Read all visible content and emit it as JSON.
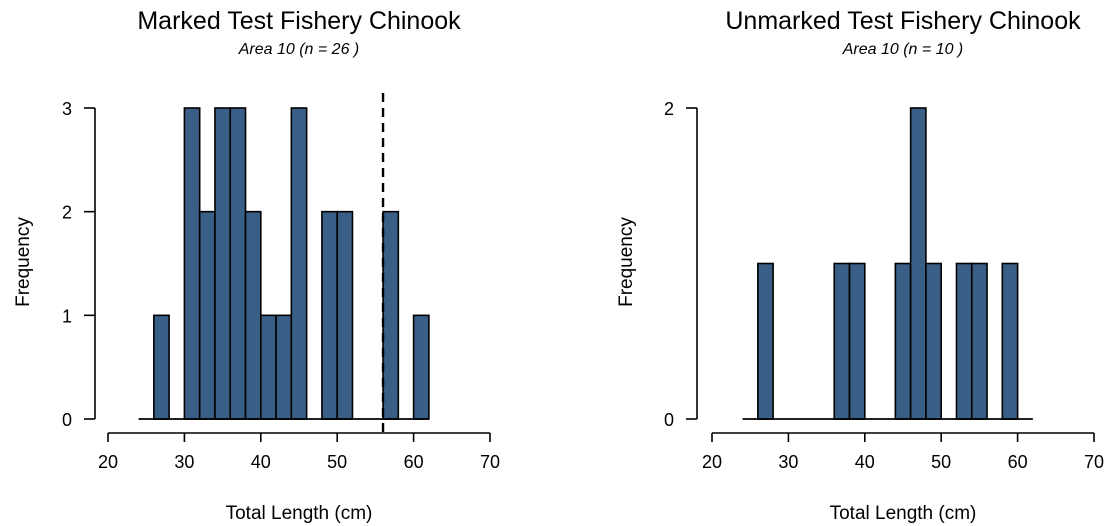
{
  "colors": {
    "bar_fill": "#3A5F87",
    "bar_stroke": "#000000",
    "axis": "#000000"
  },
  "chart_data": [
    {
      "type": "bar",
      "title": "Marked Test Fishery Chinook",
      "subtitle": "Area 10  (n = 26 )",
      "xlabel": "Total Length (cm)",
      "ylabel": "Frequency",
      "xlim": [
        20,
        70
      ],
      "xticks": [
        20,
        30,
        40,
        50,
        60,
        70
      ],
      "ylim": [
        0,
        3
      ],
      "yticks": [
        0,
        1,
        2,
        3
      ],
      "baseline_range": [
        24,
        62
      ],
      "bin_width": 2,
      "bins": [
        {
          "start": 26,
          "count": 1
        },
        {
          "start": 30,
          "count": 3
        },
        {
          "start": 32,
          "count": 2
        },
        {
          "start": 34,
          "count": 3
        },
        {
          "start": 36,
          "count": 3
        },
        {
          "start": 38,
          "count": 2
        },
        {
          "start": 40,
          "count": 1
        },
        {
          "start": 42,
          "count": 1
        },
        {
          "start": 44,
          "count": 3
        },
        {
          "start": 48,
          "count": 2
        },
        {
          "start": 50,
          "count": 2
        },
        {
          "start": 56,
          "count": 2
        },
        {
          "start": 60,
          "count": 1
        }
      ],
      "reference_line": {
        "x": 56,
        "style": "dashed"
      }
    },
    {
      "type": "bar",
      "title": "Unmarked Test Fishery Chinook",
      "subtitle": "Area 10  (n = 10 )",
      "xlabel": "Total Length (cm)",
      "ylabel": "Frequency",
      "xlim": [
        20,
        70
      ],
      "xticks": [
        20,
        30,
        40,
        50,
        60,
        70
      ],
      "ylim": [
        0,
        2
      ],
      "yticks": [
        0,
        2
      ],
      "baseline_range": [
        24,
        62
      ],
      "bin_width": 2,
      "bins": [
        {
          "start": 26,
          "count": 1
        },
        {
          "start": 36,
          "count": 1
        },
        {
          "start": 38,
          "count": 1
        },
        {
          "start": 44,
          "count": 1
        },
        {
          "start": 46,
          "count": 2
        },
        {
          "start": 48,
          "count": 1
        },
        {
          "start": 52,
          "count": 1
        },
        {
          "start": 54,
          "count": 1
        },
        {
          "start": 58,
          "count": 1
        }
      ]
    }
  ]
}
